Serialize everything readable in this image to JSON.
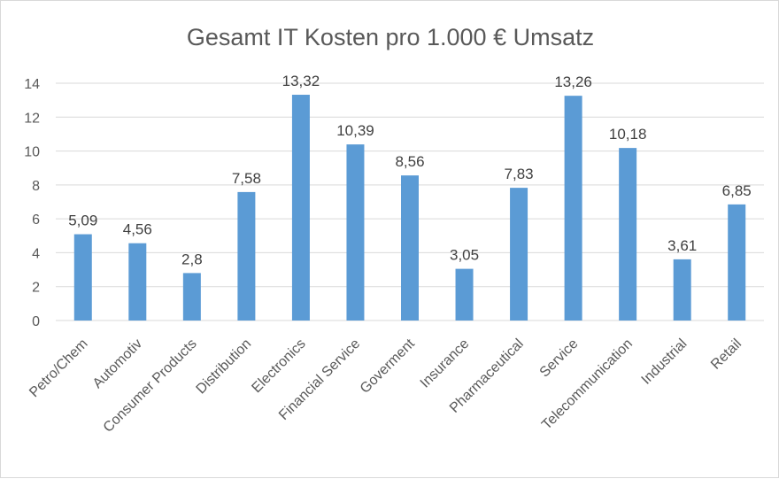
{
  "chart_data": {
    "type": "bar",
    "title": "Gesamt IT Kosten pro 1.000 € Umsatz",
    "xlabel": "",
    "ylabel": "",
    "categories": [
      "Petro/Chem",
      "Automotiv",
      "Consumer Products",
      "Distribution",
      "Electronics",
      "Financial Service",
      "Goverment",
      "Insurance",
      "Pharmaceutical",
      "Service",
      "Telecommunication",
      "Industrial",
      "Retail"
    ],
    "values": [
      5.09,
      4.56,
      2.8,
      7.58,
      13.32,
      10.39,
      8.56,
      3.05,
      7.83,
      13.26,
      10.18,
      3.61,
      6.85
    ],
    "value_labels": [
      "5,09",
      "4,56",
      "2,8",
      "7,58",
      "13,32",
      "10,39",
      "8,56",
      "3,05",
      "7,83",
      "13,26",
      "10,18",
      "3,61",
      "6,85"
    ],
    "yticks": [
      0,
      2,
      4,
      6,
      8,
      10,
      12,
      14
    ],
    "ylim": [
      0,
      14
    ],
    "grid": true,
    "legend": "none",
    "bar_color": "#5b9bd5"
  }
}
